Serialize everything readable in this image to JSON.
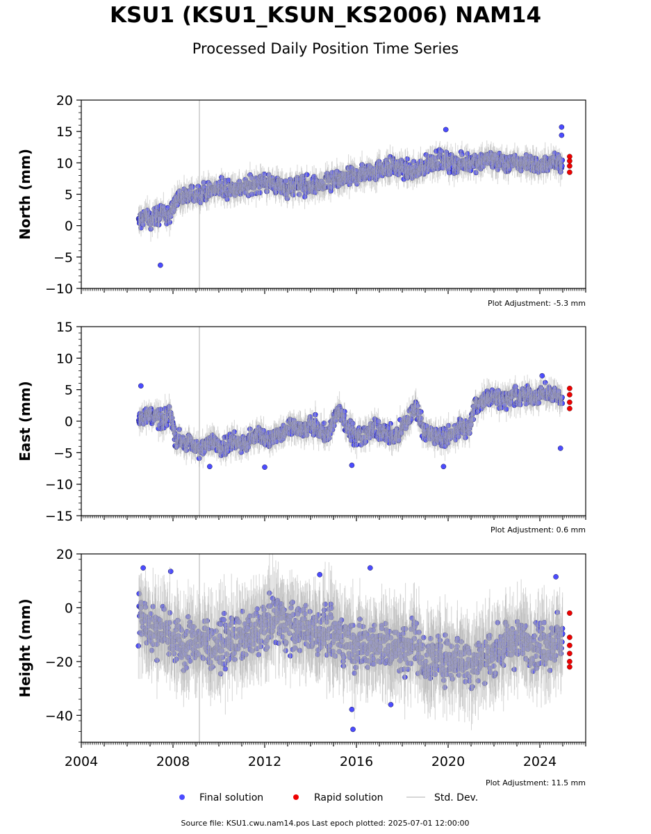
{
  "title": "KSU1 (KSU1_KSUN_KS2006) NAM14",
  "subtitle": "Processed Daily Position Time Series",
  "legend": {
    "final": "Final solution",
    "rapid": "Rapid solution",
    "std": "Std. Dev."
  },
  "footer": "Source file: KSU1.cwu.nam14.pos  Last epoch plotted: 2025-07-01 12:00:00",
  "colors": {
    "final": "#4b4bff",
    "rapid": "#ee0000",
    "std": "#b0b0b0",
    "event_line": "#c8c8c8"
  },
  "chart_data": [
    {
      "type": "scatter",
      "ylabel": "North (mm)",
      "adjustment": "Plot Adjustment: -5.3 mm",
      "xlim": [
        2004,
        2026
      ],
      "ylim": [
        -10,
        20
      ],
      "yticks": [
        20,
        15,
        10,
        5,
        0,
        -5,
        -10
      ],
      "ytick_labels": [
        "20",
        "15",
        "10",
        "5",
        "0",
        "−5",
        "−10"
      ],
      "event_lines": [
        2009.15
      ],
      "final_series": [
        {
          "x": 2006.5,
          "y": 0.5
        },
        {
          "x": 2006.8,
          "y": 1.5
        },
        {
          "x": 2007.0,
          "y": 1.0
        },
        {
          "x": 2007.3,
          "y": 1.5
        },
        {
          "x": 2007.6,
          "y": 1.8
        },
        {
          "x": 2007.9,
          "y": 2.0
        },
        {
          "x": 2008.2,
          "y": 4.5
        },
        {
          "x": 2008.5,
          "y": 4.5
        },
        {
          "x": 2008.9,
          "y": 5.0
        },
        {
          "x": 2009.5,
          "y": 5.5
        },
        {
          "x": 2010.0,
          "y": 5.8
        },
        {
          "x": 2010.5,
          "y": 6.0
        },
        {
          "x": 2011.0,
          "y": 6.0
        },
        {
          "x": 2011.5,
          "y": 6.5
        },
        {
          "x": 2012.0,
          "y": 7.0
        },
        {
          "x": 2012.5,
          "y": 6.5
        },
        {
          "x": 2013.0,
          "y": 6.0
        },
        {
          "x": 2013.5,
          "y": 6.5
        },
        {
          "x": 2014.0,
          "y": 6.2
        },
        {
          "x": 2014.5,
          "y": 6.5
        },
        {
          "x": 2015.0,
          "y": 7.0
        },
        {
          "x": 2015.5,
          "y": 7.5
        },
        {
          "x": 2016.0,
          "y": 8.0
        },
        {
          "x": 2016.5,
          "y": 8.5
        },
        {
          "x": 2017.0,
          "y": 9.0
        },
        {
          "x": 2017.5,
          "y": 9.5
        },
        {
          "x": 2018.0,
          "y": 9.0
        },
        {
          "x": 2018.5,
          "y": 8.5
        },
        {
          "x": 2019.0,
          "y": 9.5
        },
        {
          "x": 2019.5,
          "y": 10.5
        },
        {
          "x": 2020.0,
          "y": 10.0
        },
        {
          "x": 2020.5,
          "y": 10.0
        },
        {
          "x": 2021.0,
          "y": 10.0
        },
        {
          "x": 2021.5,
          "y": 10.5
        },
        {
          "x": 2022.0,
          "y": 10.5
        },
        {
          "x": 2022.5,
          "y": 10.0
        },
        {
          "x": 2023.0,
          "y": 10.0
        },
        {
          "x": 2023.5,
          "y": 10.0
        },
        {
          "x": 2024.0,
          "y": 9.5
        },
        {
          "x": 2024.5,
          "y": 10.0
        },
        {
          "x": 2025.0,
          "y": 10.0
        }
      ],
      "final_outliers": [
        {
          "x": 2007.45,
          "y": -6.3
        },
        {
          "x": 2019.9,
          "y": 15.3
        },
        {
          "x": 2024.95,
          "y": 15.7
        },
        {
          "x": 2024.95,
          "y": 14.4
        }
      ],
      "rapid_points": [
        {
          "x": 2025.3,
          "y": 8.5
        },
        {
          "x": 2025.3,
          "y": 9.5
        },
        {
          "x": 2025.3,
          "y": 10.3
        },
        {
          "x": 2025.3,
          "y": 11.0
        }
      ]
    },
    {
      "type": "scatter",
      "ylabel": "East (mm)",
      "adjustment": "Plot Adjustment: 0.6 mm",
      "xlim": [
        2004,
        2026
      ],
      "ylim": [
        -15,
        15
      ],
      "yticks": [
        15,
        10,
        5,
        0,
        -5,
        -10,
        -15
      ],
      "ytick_labels": [
        "15",
        "10",
        "5",
        "0",
        "−5",
        "−10",
        "−15"
      ],
      "event_lines": [
        2009.15
      ],
      "final_series": [
        {
          "x": 2006.5,
          "y": 0.5
        },
        {
          "x": 2006.8,
          "y": 0.8
        },
        {
          "x": 2007.0,
          "y": 1.0
        },
        {
          "x": 2007.3,
          "y": 0.5
        },
        {
          "x": 2007.6,
          "y": 0.0
        },
        {
          "x": 2007.9,
          "y": 1.5
        },
        {
          "x": 2008.1,
          "y": -2.5
        },
        {
          "x": 2008.3,
          "y": -3.0
        },
        {
          "x": 2008.9,
          "y": -4.0
        },
        {
          "x": 2009.3,
          "y": -4.5
        },
        {
          "x": 2009.8,
          "y": -3.0
        },
        {
          "x": 2010.2,
          "y": -4.0
        },
        {
          "x": 2010.7,
          "y": -3.0
        },
        {
          "x": 2011.2,
          "y": -3.5
        },
        {
          "x": 2011.7,
          "y": -2.0
        },
        {
          "x": 2012.2,
          "y": -3.0
        },
        {
          "x": 2012.7,
          "y": -2.0
        },
        {
          "x": 2013.2,
          "y": -1.0
        },
        {
          "x": 2013.7,
          "y": -1.5
        },
        {
          "x": 2014.2,
          "y": -0.5
        },
        {
          "x": 2014.7,
          "y": -2.5
        },
        {
          "x": 2015.2,
          "y": 1.5
        },
        {
          "x": 2015.7,
          "y": -1.5
        },
        {
          "x": 2016.2,
          "y": -2.5
        },
        {
          "x": 2016.7,
          "y": -1.0
        },
        {
          "x": 2017.2,
          "y": -2.0
        },
        {
          "x": 2017.7,
          "y": -2.5
        },
        {
          "x": 2018.2,
          "y": 0.0
        },
        {
          "x": 2018.6,
          "y": 2.5
        },
        {
          "x": 2019.0,
          "y": -2.0
        },
        {
          "x": 2019.5,
          "y": -2.5
        },
        {
          "x": 2020.0,
          "y": -2.5
        },
        {
          "x": 2020.5,
          "y": -1.0
        },
        {
          "x": 2020.9,
          "y": -1.5
        },
        {
          "x": 2021.2,
          "y": 2.5
        },
        {
          "x": 2021.7,
          "y": 4.0
        },
        {
          "x": 2022.2,
          "y": 3.5
        },
        {
          "x": 2022.7,
          "y": 3.5
        },
        {
          "x": 2023.2,
          "y": 4.0
        },
        {
          "x": 2023.7,
          "y": 4.0
        },
        {
          "x": 2024.2,
          "y": 4.5
        },
        {
          "x": 2024.7,
          "y": 4.0
        },
        {
          "x": 2025.0,
          "y": 3.5
        }
      ],
      "final_outliers": [
        {
          "x": 2006.6,
          "y": 5.6
        },
        {
          "x": 2009.6,
          "y": -7.2
        },
        {
          "x": 2012.0,
          "y": -7.3
        },
        {
          "x": 2015.8,
          "y": -7.0
        },
        {
          "x": 2019.8,
          "y": -7.2
        },
        {
          "x": 2024.1,
          "y": 7.2
        },
        {
          "x": 2024.9,
          "y": -4.3
        }
      ],
      "rapid_points": [
        {
          "x": 2025.3,
          "y": 2.0
        },
        {
          "x": 2025.3,
          "y": 3.0
        },
        {
          "x": 2025.3,
          "y": 4.2
        },
        {
          "x": 2025.3,
          "y": 5.2
        }
      ]
    },
    {
      "type": "scatter",
      "ylabel": "Height (mm)",
      "adjustment": "Plot Adjustment: 11.5 mm",
      "xlim": [
        2004,
        2026
      ],
      "ylim": [
        -50,
        20
      ],
      "yticks": [
        20,
        0,
        -20,
        -40
      ],
      "ytick_labels": [
        "20",
        "0",
        "−20",
        "−40"
      ],
      "xticks": [
        2004,
        2008,
        2012,
        2016,
        2020,
        2024
      ],
      "xtick_labels": [
        "2004",
        "2008",
        "2012",
        "2016",
        "2020",
        "2024"
      ],
      "event_lines": [
        2009.15
      ],
      "final_series": [
        {
          "x": 2006.5,
          "y": -3.0
        },
        {
          "x": 2006.9,
          "y": -6.0
        },
        {
          "x": 2007.3,
          "y": -10.0
        },
        {
          "x": 2007.7,
          "y": -8.0
        },
        {
          "x": 2008.1,
          "y": -12.0
        },
        {
          "x": 2008.5,
          "y": -14.0
        },
        {
          "x": 2009.0,
          "y": -12.0
        },
        {
          "x": 2009.5,
          "y": -13.0
        },
        {
          "x": 2010.0,
          "y": -14.0
        },
        {
          "x": 2010.5,
          "y": -13.0
        },
        {
          "x": 2011.0,
          "y": -11.0
        },
        {
          "x": 2011.5,
          "y": -10.0
        },
        {
          "x": 2012.0,
          "y": -6.0
        },
        {
          "x": 2012.5,
          "y": -3.0
        },
        {
          "x": 2013.0,
          "y": -6.0
        },
        {
          "x": 2013.5,
          "y": -8.0
        },
        {
          "x": 2014.0,
          "y": -8.0
        },
        {
          "x": 2014.5,
          "y": -9.0
        },
        {
          "x": 2015.0,
          "y": -10.0
        },
        {
          "x": 2015.5,
          "y": -11.0
        },
        {
          "x": 2016.0,
          "y": -14.0
        },
        {
          "x": 2016.5,
          "y": -14.0
        },
        {
          "x": 2017.0,
          "y": -13.0
        },
        {
          "x": 2017.5,
          "y": -14.0
        },
        {
          "x": 2018.0,
          "y": -15.0
        },
        {
          "x": 2018.5,
          "y": -12.0
        },
        {
          "x": 2019.0,
          "y": -20.0
        },
        {
          "x": 2019.5,
          "y": -18.0
        },
        {
          "x": 2020.0,
          "y": -19.0
        },
        {
          "x": 2020.5,
          "y": -18.0
        },
        {
          "x": 2021.0,
          "y": -20.0
        },
        {
          "x": 2021.5,
          "y": -19.0
        },
        {
          "x": 2022.0,
          "y": -16.0
        },
        {
          "x": 2022.5,
          "y": -14.0
        },
        {
          "x": 2023.0,
          "y": -13.0
        },
        {
          "x": 2023.5,
          "y": -13.0
        },
        {
          "x": 2024.0,
          "y": -14.0
        },
        {
          "x": 2024.5,
          "y": -13.0
        },
        {
          "x": 2025.0,
          "y": -12.0
        }
      ],
      "final_outliers": [
        {
          "x": 2006.7,
          "y": 14.8
        },
        {
          "x": 2007.9,
          "y": 13.5
        },
        {
          "x": 2014.4,
          "y": 12.3
        },
        {
          "x": 2016.6,
          "y": 14.8
        },
        {
          "x": 2015.8,
          "y": -37.8
        },
        {
          "x": 2015.85,
          "y": -45.2
        },
        {
          "x": 2017.5,
          "y": -36.0
        },
        {
          "x": 2024.7,
          "y": 11.5
        }
      ],
      "rapid_points": [
        {
          "x": 2025.3,
          "y": -2.0
        },
        {
          "x": 2025.3,
          "y": -11.0
        },
        {
          "x": 2025.3,
          "y": -14.0
        },
        {
          "x": 2025.3,
          "y": -17.0
        },
        {
          "x": 2025.3,
          "y": -20.0
        },
        {
          "x": 2025.3,
          "y": -22.0
        }
      ]
    }
  ]
}
